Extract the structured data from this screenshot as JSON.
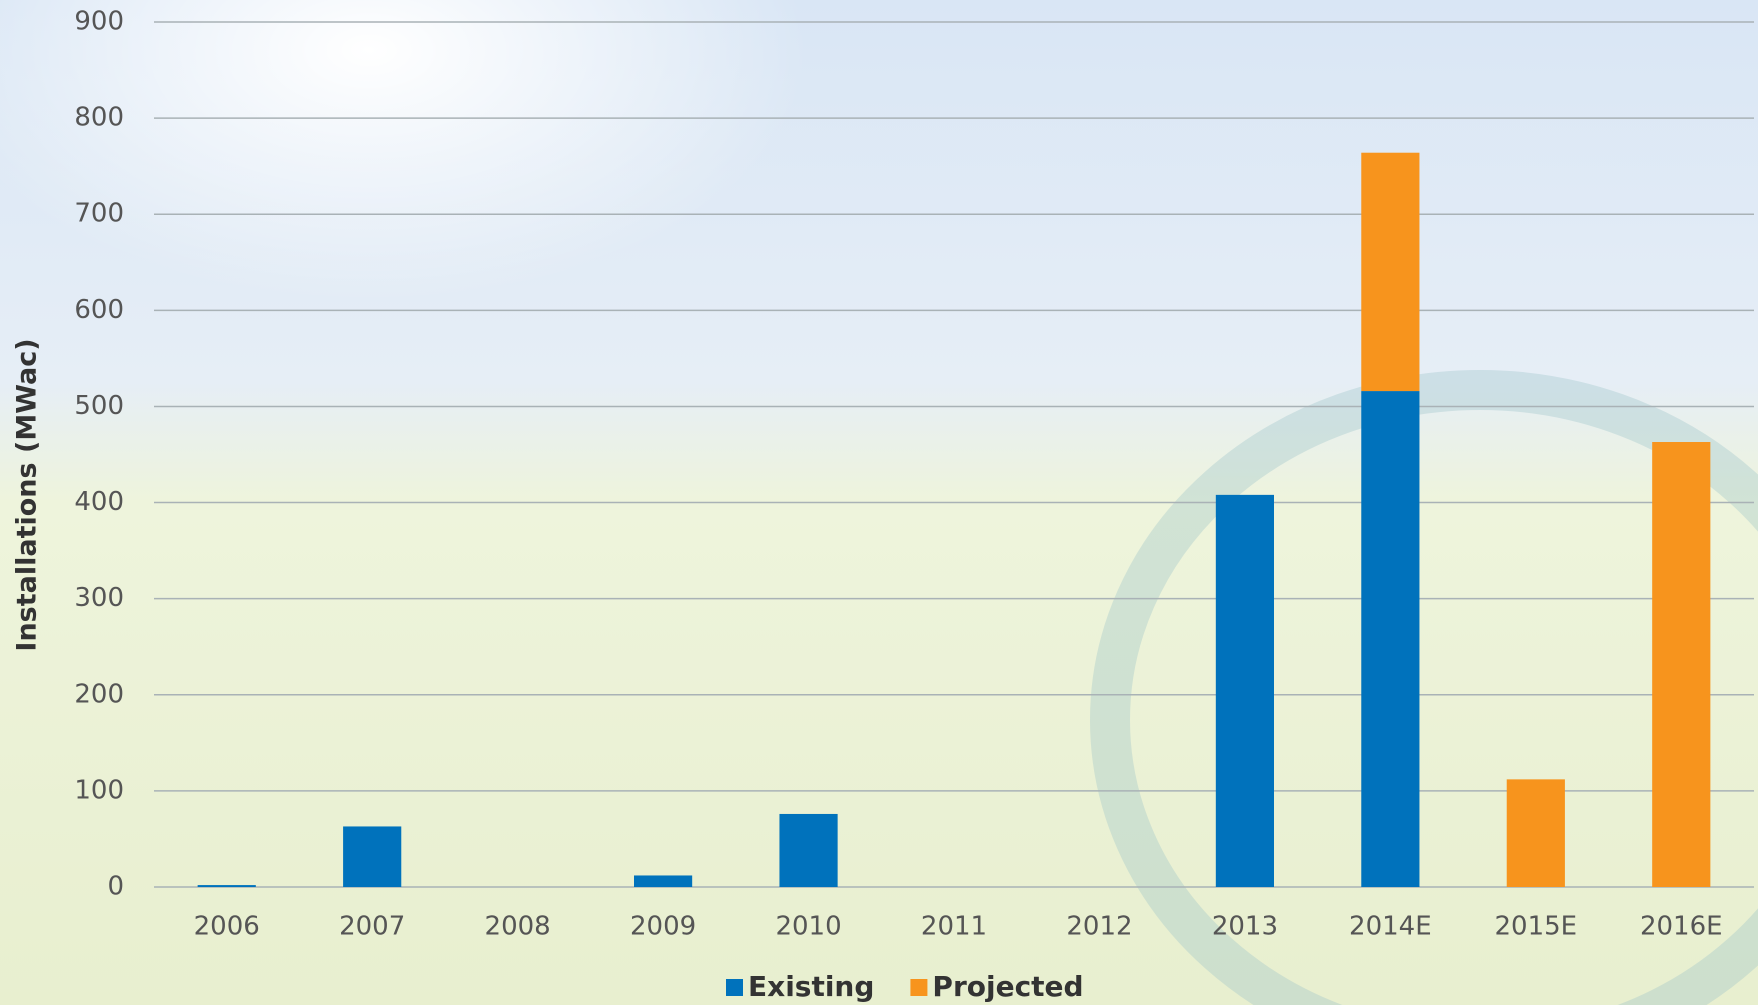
{
  "chart_data": {
    "type": "stacked_bar",
    "y_label": "Installations (MWac)",
    "categories": [
      "2006",
      "2007",
      "2008",
      "2009",
      "2010",
      "2011",
      "2012",
      "2013",
      "2014E",
      "2015E",
      "2016E"
    ],
    "series": [
      {
        "name": "Existing",
        "color": "#0072bc",
        "values": [
          2,
          63,
          0,
          12,
          76,
          0,
          0,
          408,
          516,
          0,
          0
        ]
      },
      {
        "name": "Projected",
        "color": "#f7941d",
        "values": [
          0,
          0,
          0,
          0,
          0,
          0,
          0,
          0,
          248,
          112,
          463
        ]
      }
    ],
    "ylim": [
      0,
      900
    ],
    "yticks": [
      0,
      100,
      200,
      300,
      400,
      500,
      600,
      700,
      800,
      900
    ],
    "grid": true
  }
}
